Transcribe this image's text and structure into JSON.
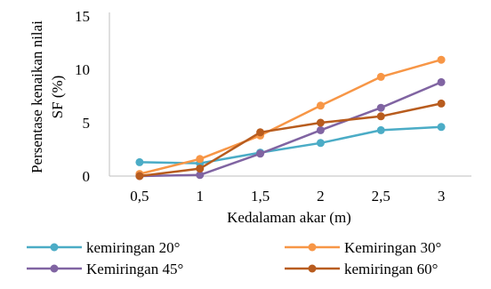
{
  "chart_data": {
    "type": "line",
    "title": "",
    "xlabel": "Kedalaman akar (m)",
    "ylabel_lines": [
      "Persentase kenaikan nilai",
      "SF (%)"
    ],
    "categories": [
      "0,5",
      "1",
      "1,5",
      "2",
      "2,5",
      "3"
    ],
    "ylim": [
      0,
      15
    ],
    "yticks": [
      0,
      5,
      10,
      15
    ],
    "grid": false,
    "legend_position": "bottom",
    "series": [
      {
        "name": "kemiringan 20°",
        "color": "#4bacc6",
        "values": [
          1.3,
          1.2,
          2.2,
          3.1,
          4.3,
          4.6
        ]
      },
      {
        "name": "Kemiringan 30°",
        "color": "#f79646",
        "values": [
          0.2,
          1.6,
          3.8,
          6.6,
          9.3,
          10.9
        ]
      },
      {
        "name": "Kemiringan 45°",
        "color": "#8064a2",
        "values": [
          0.0,
          0.1,
          2.1,
          4.3,
          6.4,
          8.8
        ]
      },
      {
        "name": "kemiringan 60°",
        "color": "#b85c1e",
        "values": [
          0.0,
          0.7,
          4.1,
          5.0,
          5.6,
          6.8
        ]
      }
    ]
  }
}
